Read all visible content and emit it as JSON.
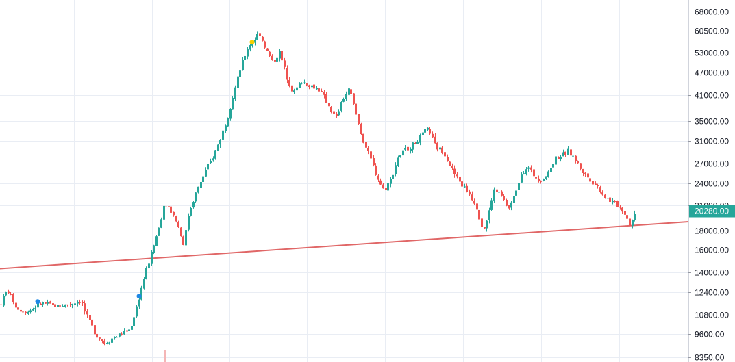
{
  "colors": {
    "up": "#26a69a",
    "down": "#ef5350",
    "grid": "#e9edf4",
    "axis_text": "#131722",
    "trendline": "#e06666",
    "last_price_line": "#26a69a",
    "marker_yellow": "#f5d000",
    "marker_blue": "#1e88e5",
    "background": "#ffffff"
  },
  "chart_data": {
    "type": "candlestick",
    "y_scale": "log",
    "ylim": [
      8200,
      72000
    ],
    "grid": true,
    "y_ticks": [
      {
        "value": 68000,
        "label": "68000.00"
      },
      {
        "value": 60500,
        "label": "60500.00"
      },
      {
        "value": 53000,
        "label": "53000.00"
      },
      {
        "value": 47000,
        "label": "47000.00"
      },
      {
        "value": 41000,
        "label": "41000.00"
      },
      {
        "value": 35000,
        "label": "35000.00"
      },
      {
        "value": 31000,
        "label": "31000.00"
      },
      {
        "value": 27000,
        "label": "27000.00"
      },
      {
        "value": 24000,
        "label": "24000.00"
      },
      {
        "value": 21000,
        "label": "21000.00"
      },
      {
        "value": 18000,
        "label": "18000.00"
      },
      {
        "value": 16000,
        "label": "16000.00"
      },
      {
        "value": 14000,
        "label": "14000.00"
      },
      {
        "value": 12400,
        "label": "12400.00"
      },
      {
        "value": 10800,
        "label": "10800.00"
      },
      {
        "value": 9600,
        "label": "9600.00"
      },
      {
        "value": 8350,
        "label": "8350.00"
      }
    ],
    "last_price": {
      "value": 20280,
      "label": "20280.00"
    },
    "anchors": [
      [
        0,
        11500
      ],
      [
        10,
        12600
      ],
      [
        25,
        11200
      ],
      [
        40,
        11000
      ],
      [
        60,
        11600
      ],
      [
        80,
        11400
      ],
      [
        100,
        11500
      ],
      [
        118,
        11800
      ],
      [
        125,
        10800
      ],
      [
        140,
        9600
      ],
      [
        152,
        9100
      ],
      [
        165,
        9400
      ],
      [
        180,
        9700
      ],
      [
        190,
        9900
      ],
      [
        200,
        11500
      ],
      [
        210,
        13500
      ],
      [
        220,
        15500
      ],
      [
        232,
        18500
      ],
      [
        240,
        21500
      ],
      [
        248,
        20500
      ],
      [
        258,
        19000
      ],
      [
        268,
        16500
      ],
      [
        275,
        20000
      ],
      [
        285,
        22500
      ],
      [
        298,
        25500
      ],
      [
        310,
        28000
      ],
      [
        320,
        31000
      ],
      [
        330,
        35000
      ],
      [
        340,
        41000
      ],
      [
        352,
        49000
      ],
      [
        362,
        55000
      ],
      [
        370,
        57000
      ],
      [
        378,
        60000
      ],
      [
        388,
        54000
      ],
      [
        398,
        50000
      ],
      [
        408,
        53000
      ],
      [
        418,
        46000
      ],
      [
        428,
        41500
      ],
      [
        440,
        44500
      ],
      [
        452,
        43500
      ],
      [
        465,
        42500
      ],
      [
        478,
        39000
      ],
      [
        490,
        35500
      ],
      [
        500,
        40000
      ],
      [
        510,
        42500
      ],
      [
        520,
        36000
      ],
      [
        530,
        31000
      ],
      [
        540,
        28000
      ],
      [
        550,
        25000
      ],
      [
        560,
        23000
      ],
      [
        570,
        24500
      ],
      [
        580,
        28000
      ],
      [
        592,
        29500
      ],
      [
        605,
        30500
      ],
      [
        615,
        32000
      ],
      [
        625,
        33500
      ],
      [
        635,
        30000
      ],
      [
        648,
        29000
      ],
      [
        660,
        26000
      ],
      [
        672,
        24000
      ],
      [
        685,
        22500
      ],
      [
        695,
        21000
      ],
      [
        705,
        18000
      ],
      [
        712,
        19500
      ],
      [
        720,
        23000
      ],
      [
        730,
        22500
      ],
      [
        742,
        20500
      ],
      [
        750,
        22000
      ],
      [
        760,
        25500
      ],
      [
        770,
        26500
      ],
      [
        780,
        25000
      ],
      [
        790,
        24500
      ],
      [
        800,
        25500
      ],
      [
        810,
        28000
      ],
      [
        822,
        28500
      ],
      [
        830,
        29200
      ],
      [
        840,
        27500
      ],
      [
        852,
        25500
      ],
      [
        862,
        24500
      ],
      [
        872,
        23500
      ],
      [
        882,
        22200
      ],
      [
        892,
        21500
      ],
      [
        902,
        21000
      ],
      [
        912,
        20000
      ],
      [
        920,
        18600
      ],
      [
        928,
        20280
      ]
    ],
    "trendline": [
      [
        0,
        14300
      ],
      [
        1005,
        19000
      ]
    ],
    "markers": [
      {
        "x": 55,
        "value": 11700,
        "color": "blue"
      },
      {
        "x": 203,
        "value": 12100,
        "color": "blue"
      },
      {
        "x": 368,
        "value": 56500,
        "color": "yellow"
      }
    ]
  }
}
